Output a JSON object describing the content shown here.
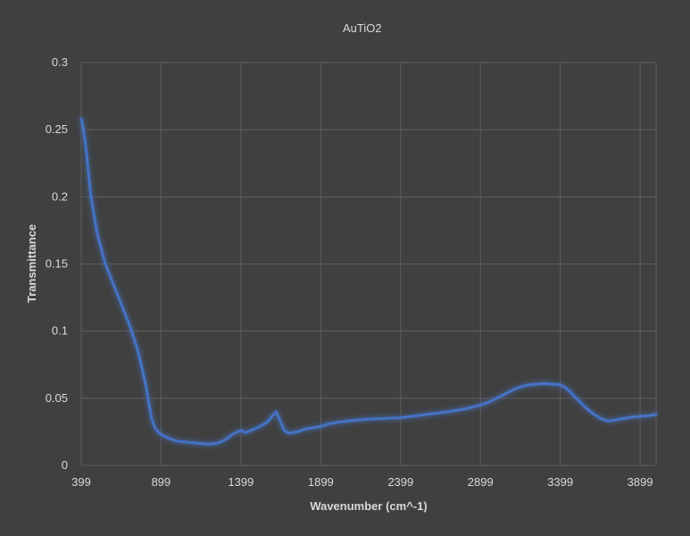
{
  "chart_data": {
    "type": "line",
    "title": "",
    "xlabel": "Wavenumber (cm^-1)",
    "ylabel": "Transmittance",
    "xlim": [
      399,
      3999
    ],
    "ylim": [
      0,
      0.3
    ],
    "x_ticks": [
      399,
      899,
      1399,
      1899,
      2399,
      2899,
      3399,
      3899
    ],
    "y_ticks": [
      0,
      0.05,
      0.1,
      0.15,
      0.2,
      0.25,
      0.3
    ],
    "y_tick_labels": [
      "0",
      "0.05",
      "0.1",
      "0.15",
      "0.2",
      "0.25",
      "0.3"
    ],
    "grid": true,
    "legend_position": "top-center",
    "series_color": "#4472c4",
    "background_color": "#404040",
    "series": [
      {
        "name": "AuTiO2",
        "x": [
          399,
          410,
          430,
          460,
          500,
          550,
          600,
          650,
          700,
          750,
          780,
          800,
          820,
          840,
          860,
          880,
          899,
          950,
          1000,
          1050,
          1100,
          1150,
          1200,
          1250,
          1300,
          1350,
          1399,
          1430,
          1480,
          1520,
          1560,
          1590,
          1620,
          1650,
          1670,
          1700,
          1750,
          1800,
          1850,
          1899,
          1950,
          2000,
          2100,
          2200,
          2300,
          2399,
          2500,
          2600,
          2700,
          2800,
          2899,
          2950,
          3000,
          3050,
          3100,
          3150,
          3200,
          3250,
          3300,
          3350,
          3399,
          3430,
          3460,
          3500,
          3550,
          3600,
          3650,
          3700,
          3750,
          3800,
          3850,
          3899,
          3950,
          3999
        ],
        "y": [
          0.258,
          0.252,
          0.235,
          0.2,
          0.172,
          0.15,
          0.135,
          0.12,
          0.105,
          0.087,
          0.072,
          0.062,
          0.048,
          0.035,
          0.028,
          0.025,
          0.023,
          0.02,
          0.018,
          0.0175,
          0.0168,
          0.0162,
          0.0158,
          0.0165,
          0.019,
          0.0235,
          0.026,
          0.0245,
          0.027,
          0.029,
          0.032,
          0.036,
          0.04,
          0.032,
          0.026,
          0.024,
          0.025,
          0.027,
          0.028,
          0.029,
          0.031,
          0.032,
          0.0335,
          0.0345,
          0.035,
          0.0355,
          0.037,
          0.0385,
          0.04,
          0.042,
          0.045,
          0.047,
          0.05,
          0.053,
          0.056,
          0.0585,
          0.06,
          0.0605,
          0.061,
          0.0605,
          0.06,
          0.058,
          0.055,
          0.05,
          0.044,
          0.039,
          0.035,
          0.033,
          0.034,
          0.035,
          0.036,
          0.0365,
          0.037,
          0.038
        ]
      }
    ]
  }
}
